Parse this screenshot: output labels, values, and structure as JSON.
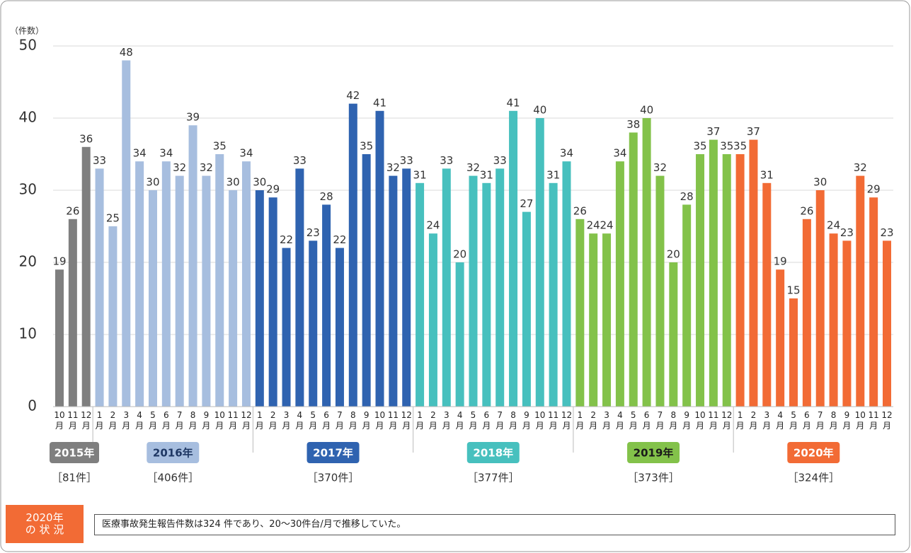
{
  "chart_data": {
    "type": "bar",
    "y_label": "（件数）",
    "ylim": [
      0,
      50
    ],
    "yticks": [
      0,
      10,
      20,
      30,
      40,
      50
    ],
    "grid": true,
    "series": [
      {
        "name": "2015年",
        "color": "#7f7f7f",
        "badge_text_color": "#ffffff",
        "categories": [
          "10月",
          "11月",
          "12月"
        ],
        "values": [
          19,
          26,
          36
        ],
        "total": 81,
        "total_label": "［81件］"
      },
      {
        "name": "2016年",
        "color": "#a7bedf",
        "badge_text_color": "#1f3864",
        "categories": [
          "1月",
          "2月",
          "3月",
          "4月",
          "5月",
          "6月",
          "7月",
          "8月",
          "9月",
          "10月",
          "11月",
          "12月"
        ],
        "values": [
          33,
          25,
          48,
          34,
          30,
          34,
          32,
          39,
          32,
          35,
          30,
          34
        ],
        "total": 406,
        "total_label": "［406件］"
      },
      {
        "name": "2017年",
        "color": "#2f63b0",
        "badge_text_color": "#ffffff",
        "categories": [
          "1月",
          "2月",
          "3月",
          "4月",
          "5月",
          "6月",
          "7月",
          "8月",
          "9月",
          "10月",
          "11月",
          "12月"
        ],
        "values": [
          30,
          29,
          22,
          33,
          23,
          28,
          22,
          42,
          35,
          41,
          32,
          33
        ],
        "total": 370,
        "total_label": "［370件］"
      },
      {
        "name": "2018年",
        "color": "#47c0be",
        "badge_text_color": "#ffffff",
        "categories": [
          "1月",
          "2月",
          "3月",
          "4月",
          "5月",
          "6月",
          "7月",
          "8月",
          "9月",
          "10月",
          "11月",
          "12月"
        ],
        "values": [
          31,
          24,
          33,
          20,
          32,
          31,
          33,
          41,
          27,
          40,
          31,
          34
        ],
        "total": 377,
        "total_label": "［377件］"
      },
      {
        "name": "2019年",
        "color": "#83c24a",
        "badge_text_color": "#1a1a1a",
        "categories": [
          "1月",
          "2月",
          "3月",
          "4月",
          "5月",
          "6月",
          "7月",
          "8月",
          "9月",
          "10月",
          "11月",
          "12月"
        ],
        "values": [
          26,
          24,
          24,
          34,
          38,
          40,
          32,
          20,
          28,
          35,
          37,
          35
        ],
        "total": 373,
        "total_label": "［373件］"
      },
      {
        "name": "2020年",
        "color": "#f26b35",
        "badge_text_color": "#ffffff",
        "categories": [
          "1月",
          "2月",
          "3月",
          "4月",
          "5月",
          "6月",
          "7月",
          "8月",
          "9月",
          "10月",
          "11月",
          "12月"
        ],
        "values": [
          35,
          37,
          31,
          19,
          15,
          26,
          30,
          24,
          23,
          32,
          29,
          23
        ],
        "total": 324,
        "total_label": "［324件］"
      }
    ]
  },
  "note": {
    "heading_lines": [
      "2020年",
      "の 状 況"
    ],
    "text": "医療事故発生報告件数は324 件であり、20～30件台/月で推移していた。"
  }
}
